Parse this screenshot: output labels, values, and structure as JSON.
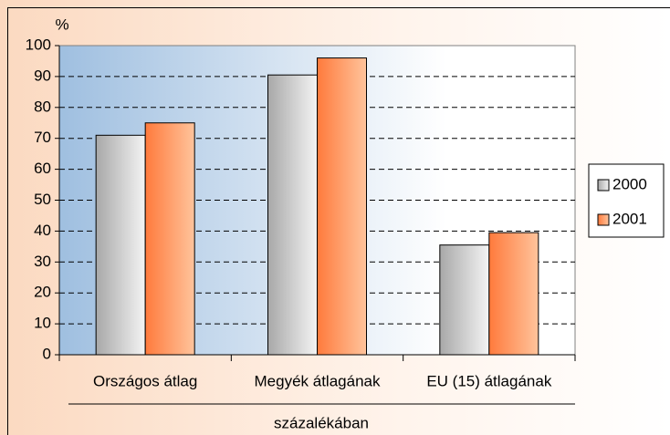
{
  "chart_data": {
    "type": "bar",
    "ylabel": "%",
    "x_group_label": "százalékában",
    "categories": [
      "Országos átlag",
      "Megyék átlagának",
      "EU (15) átlagának"
    ],
    "series": [
      {
        "name": "2000",
        "color": "#c8c8c8",
        "values": [
          71,
          90.5,
          35.5
        ]
      },
      {
        "name": "2001",
        "color": "#ff7a3c",
        "values": [
          75,
          96,
          39.5
        ]
      }
    ],
    "ylim": [
      0,
      100
    ],
    "yticks": [
      0,
      10,
      20,
      30,
      40,
      50,
      60,
      70,
      80,
      90,
      100
    ],
    "grid": true,
    "legend": "right"
  }
}
